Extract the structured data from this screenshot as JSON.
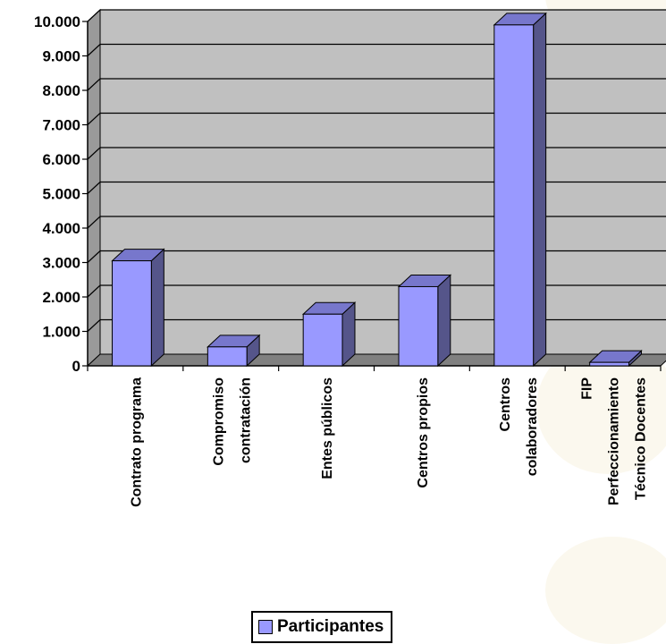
{
  "chart_data": {
    "type": "bar",
    "style": "3d-column",
    "categories": [
      [
        "Contrato programa"
      ],
      [
        "Compromiso",
        "contratación"
      ],
      [
        "Entes públicos"
      ],
      [
        "Centros propios"
      ],
      [
        "Centros",
        "colaboradores"
      ],
      [
        "FIP",
        "Perfeccionamiento",
        "Técnico Docentes"
      ]
    ],
    "series": [
      {
        "name": "Participantes",
        "values": [
          3050,
          550,
          1500,
          2300,
          9900,
          100
        ],
        "color": "#9999ff"
      }
    ],
    "ylim": [
      0,
      10000
    ],
    "yticks": [
      "0",
      "1.000",
      "2.000",
      "3.000",
      "4.000",
      "5.000",
      "6.000",
      "7.000",
      "8.000",
      "9.000",
      "10.000"
    ],
    "grid": true,
    "legend_position": "bottom",
    "colors": {
      "plot_back": "#c0c0c0",
      "plot_side": "#9a9a9a",
      "floor": "#808080",
      "bar_front": "#9999ff",
      "bar_side": "#55558a",
      "bar_top": "#7777cc"
    }
  }
}
